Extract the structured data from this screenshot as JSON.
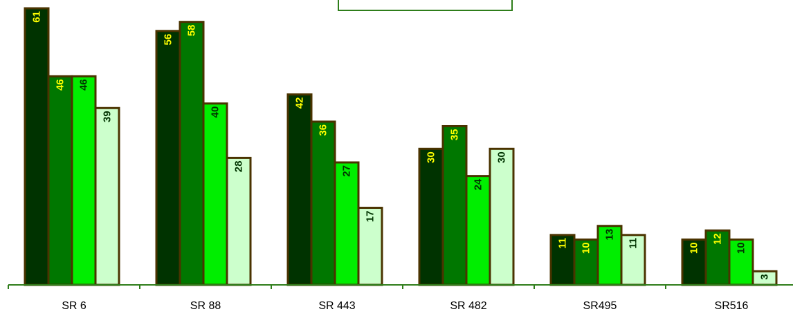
{
  "chart_data": {
    "type": "bar",
    "categories": [
      "SR 6",
      "SR 88",
      "SR 443",
      "SR 482",
      "SR495",
      "SR516"
    ],
    "series": [
      {
        "values": [
          61,
          56,
          42,
          30,
          11,
          10
        ],
        "color": "#003300",
        "label_color": "#ffff00"
      },
      {
        "values": [
          46,
          58,
          36,
          35,
          10,
          12
        ],
        "color": "#007700",
        "label_color": "#ffff00"
      },
      {
        "values": [
          46,
          40,
          27,
          24,
          13,
          10
        ],
        "color": "#00ee00",
        "label_color": "#003300"
      },
      {
        "values": [
          39,
          28,
          17,
          30,
          11,
          3
        ],
        "color": "#ccffcc",
        "label_color": "#003300"
      }
    ],
    "ylim": [
      0,
      61
    ],
    "grid": false,
    "legend": "top-center",
    "bar_outline_color": "#4a3300",
    "axis_color": "#2e7d1a"
  }
}
